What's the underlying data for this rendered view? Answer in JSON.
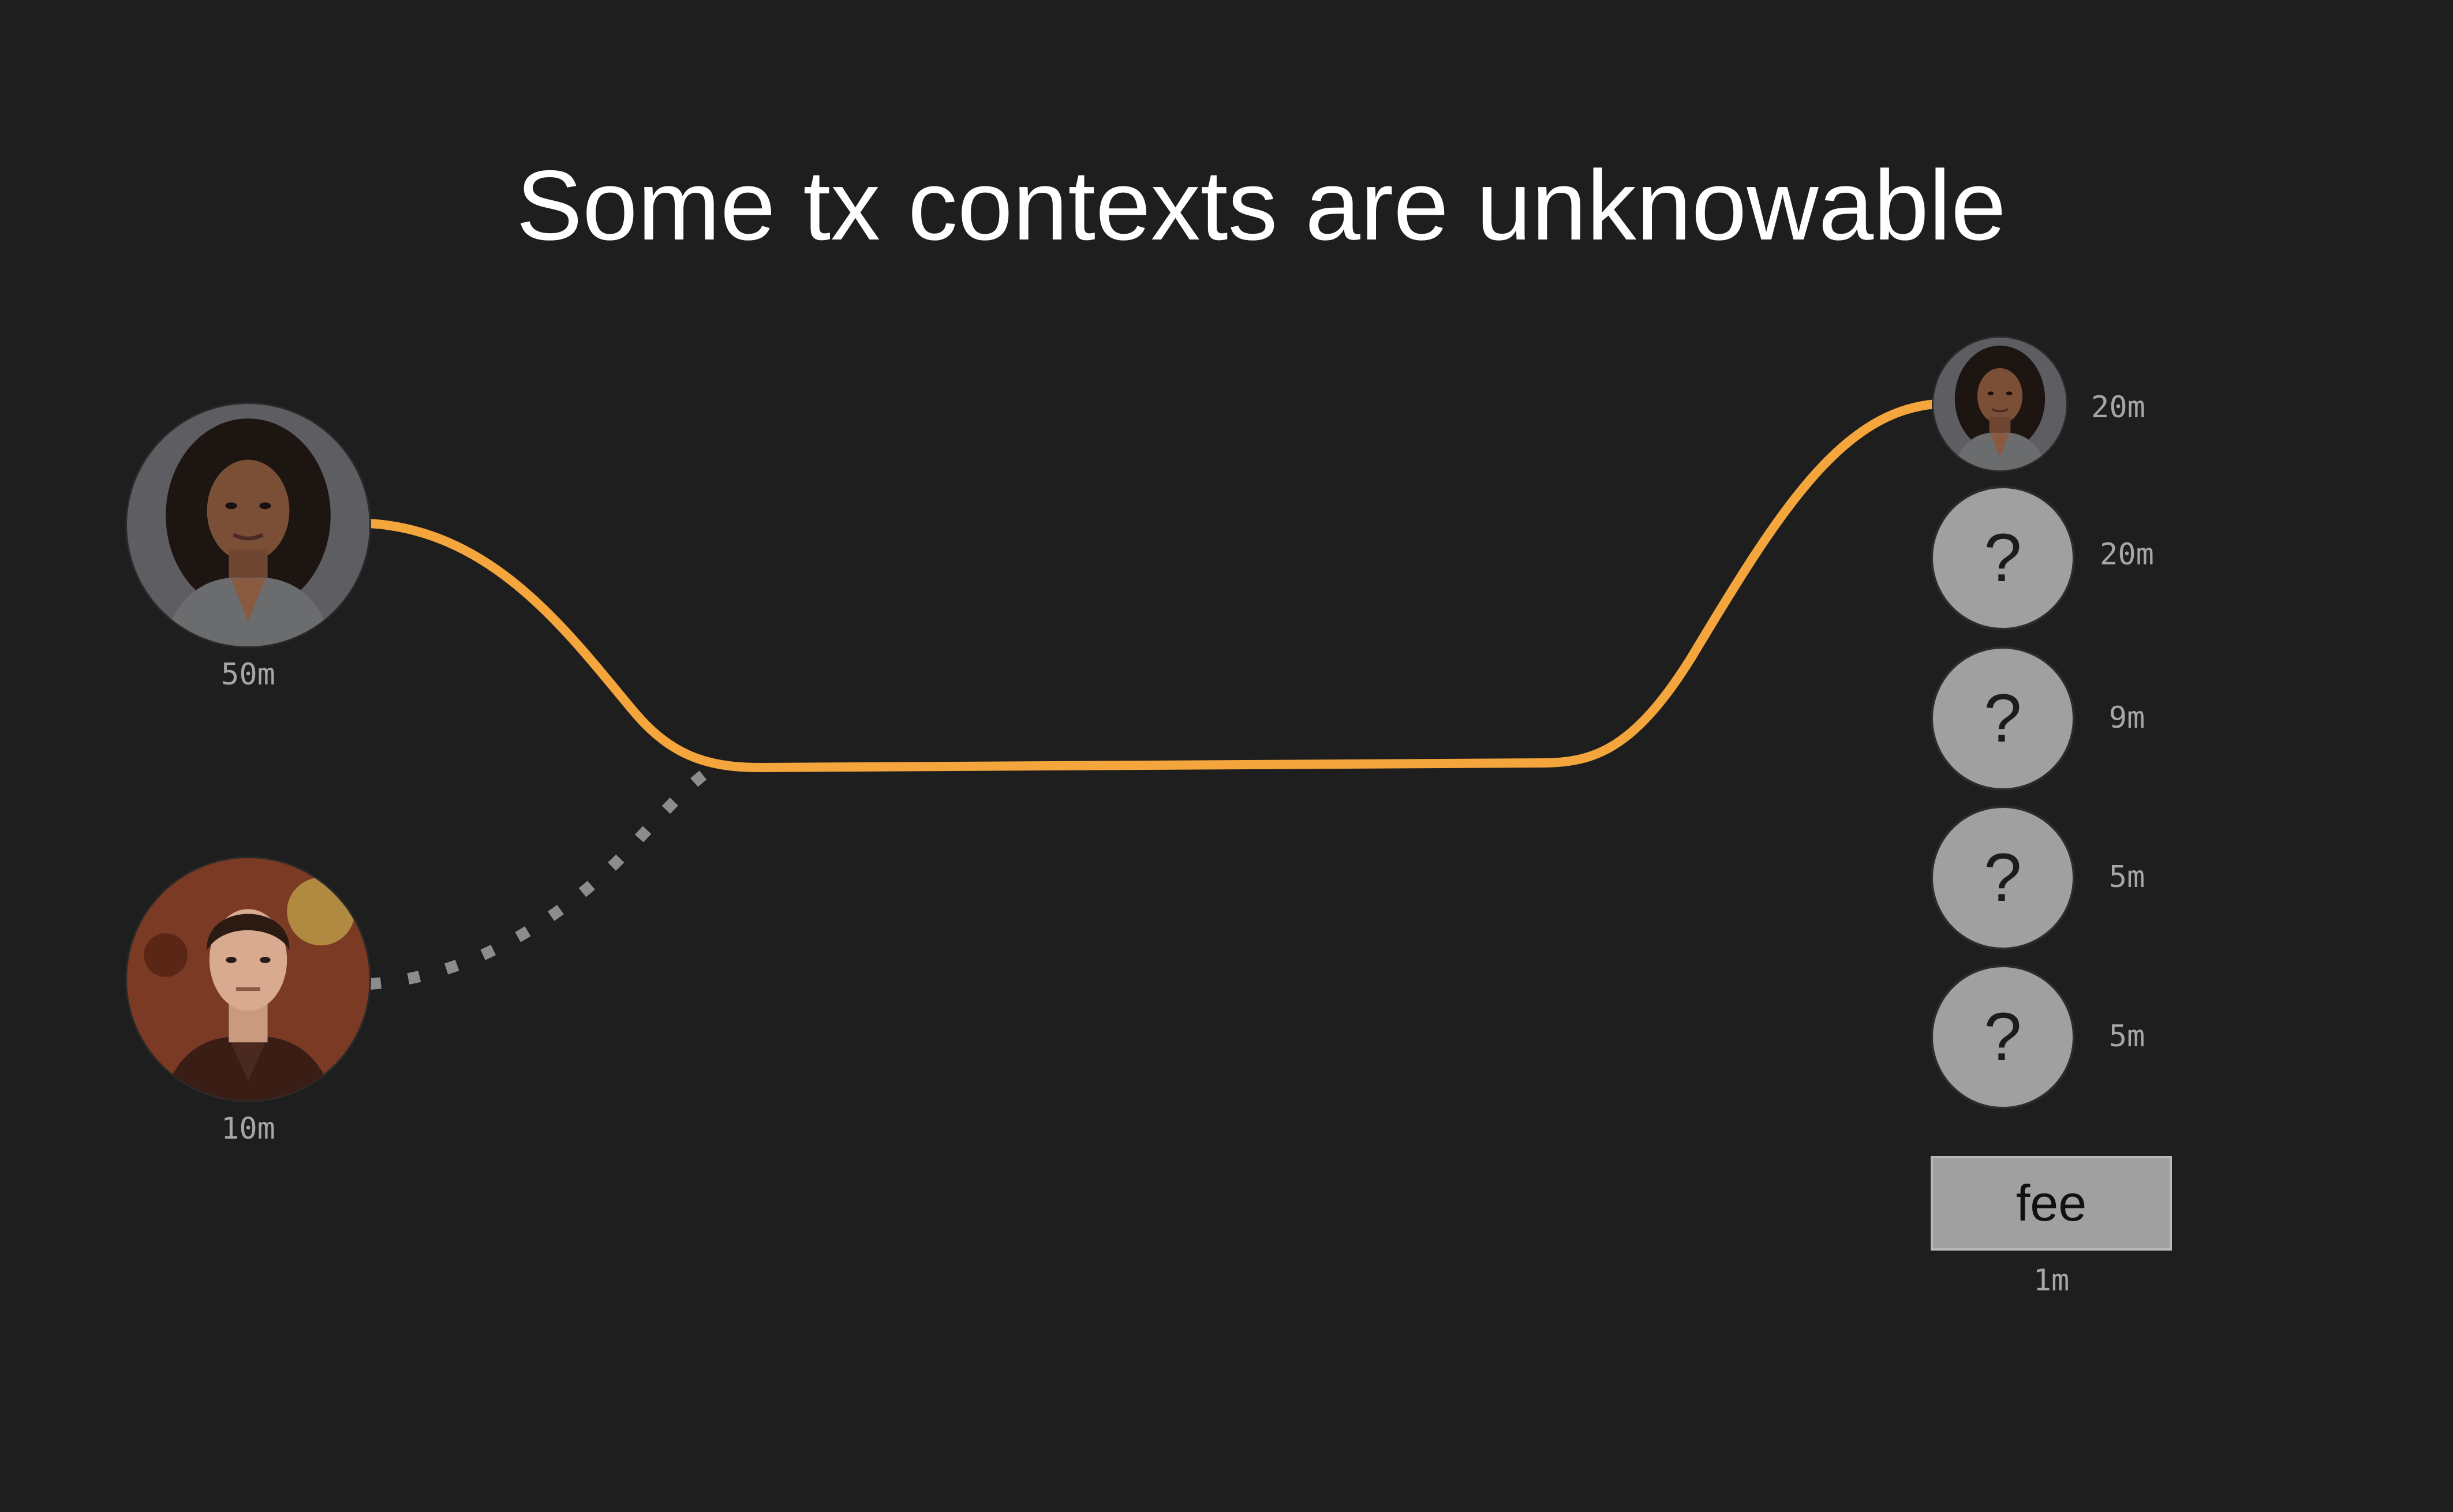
{
  "title": "Some tx contexts are unknowable",
  "colors": {
    "background": "#1e1e1e",
    "known_flow": "#f4a53c",
    "unknown_flow": "#8c8c8c",
    "unknown_node": "#a0a0a0"
  },
  "inputs": [
    {
      "avatar": "woman-portrait-avatar",
      "amount": "50m"
    },
    {
      "avatar": "man-portrait-avatar",
      "amount": "10m"
    }
  ],
  "outputs": [
    {
      "avatar": "woman-portrait-avatar",
      "amount": "20m"
    },
    {
      "symbol": "?",
      "amount": "20m"
    },
    {
      "symbol": "?",
      "amount": "9m"
    },
    {
      "symbol": "?",
      "amount": "5m"
    },
    {
      "symbol": "?",
      "amount": "5m"
    }
  ],
  "fee": {
    "label": "fee",
    "amount": "1m"
  }
}
